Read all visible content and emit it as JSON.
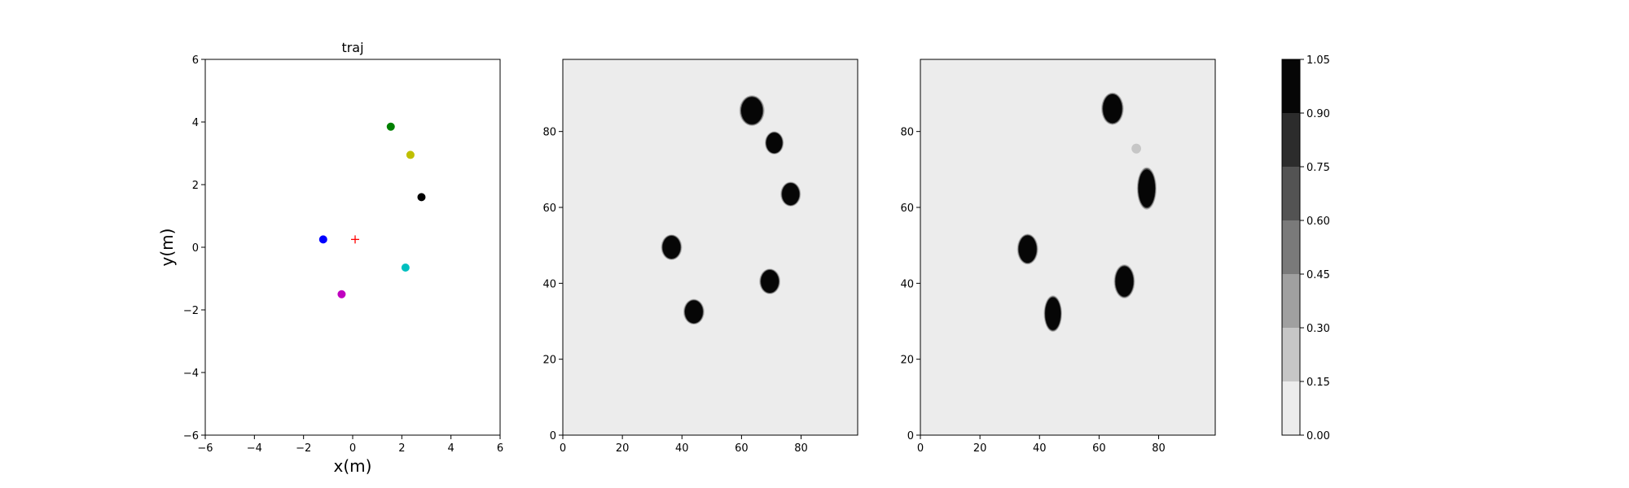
{
  "chart_data": [
    {
      "type": "scatter",
      "title": "traj",
      "xlabel": "x(m)",
      "ylabel": "y(m)",
      "xlim": [
        -6,
        6
      ],
      "ylim": [
        -6,
        6
      ],
      "xticks": [
        "−6",
        "−4",
        "−2",
        "0",
        "2",
        "4",
        "6"
      ],
      "yticks": [
        "−6",
        "−4",
        "−2",
        "0",
        "2",
        "4",
        "6"
      ],
      "grid": false,
      "points": [
        {
          "x": -1.2,
          "y": 0.25,
          "color": "#0000ff",
          "marker": "circle"
        },
        {
          "x": 1.55,
          "y": 3.85,
          "color": "#008000",
          "marker": "circle"
        },
        {
          "x": 2.35,
          "y": 2.95,
          "color": "#bfbf00",
          "marker": "circle"
        },
        {
          "x": 2.8,
          "y": 1.6,
          "color": "#000000",
          "marker": "circle"
        },
        {
          "x": 2.15,
          "y": -0.65,
          "color": "#00bfbf",
          "marker": "circle"
        },
        {
          "x": -0.45,
          "y": -1.5,
          "color": "#bf00bf",
          "marker": "circle"
        },
        {
          "x": 0.1,
          "y": 0.25,
          "color": "#ff0000",
          "marker": "plus"
        }
      ]
    },
    {
      "type": "heatmap",
      "title": "",
      "xlim": [
        0,
        99
      ],
      "ylim": [
        0,
        99
      ],
      "xticks": [
        "0",
        "20",
        "40",
        "60",
        "80"
      ],
      "yticks": [
        "0",
        "20",
        "40",
        "60",
        "80"
      ],
      "background_value": 0.0,
      "blobs": [
        {
          "x": 63.5,
          "y": 85.5,
          "radius": 3.6,
          "value": 1.0
        },
        {
          "x": 71.0,
          "y": 77.0,
          "radius": 2.7,
          "value": 1.0
        },
        {
          "x": 76.5,
          "y": 63.5,
          "radius": 2.9,
          "value": 1.0
        },
        {
          "x": 36.5,
          "y": 49.5,
          "radius": 3.0,
          "value": 1.0
        },
        {
          "x": 69.5,
          "y": 40.5,
          "radius": 3.0,
          "value": 1.0
        },
        {
          "x": 44.0,
          "y": 32.5,
          "radius": 3.0,
          "value": 1.0
        }
      ]
    },
    {
      "type": "heatmap",
      "title": "",
      "xlim": [
        0,
        99
      ],
      "ylim": [
        0,
        99
      ],
      "xticks": [
        "0",
        "20",
        "40",
        "60",
        "80"
      ],
      "yticks": [
        "0",
        "20",
        "40",
        "60",
        "80"
      ],
      "background_value": 0.0,
      "blobs": [
        {
          "x": 64.5,
          "y": 86.0,
          "rx": 3.2,
          "ry": 3.8,
          "value": 1.0
        },
        {
          "x": 72.5,
          "y": 75.5,
          "rx": 1.6,
          "ry": 1.3,
          "value": 0.2
        },
        {
          "x": 76.0,
          "y": 65.0,
          "rx": 2.8,
          "ry": 5.0,
          "value": 1.0
        },
        {
          "x": 36.0,
          "y": 49.0,
          "rx": 3.0,
          "ry": 3.6,
          "value": 1.0
        },
        {
          "x": 68.5,
          "y": 40.5,
          "rx": 3.0,
          "ry": 4.0,
          "value": 1.0
        },
        {
          "x": 44.5,
          "y": 32.0,
          "rx": 2.6,
          "ry": 4.3,
          "value": 1.0
        }
      ]
    }
  ],
  "colorbar": {
    "levels": [
      0.0,
      0.15,
      0.3,
      0.45,
      0.6,
      0.75,
      0.9,
      1.05
    ],
    "labels": [
      "0.00",
      "0.15",
      "0.30",
      "0.45",
      "0.60",
      "0.75",
      "0.90",
      "1.05"
    ],
    "colors": [
      "#ececec",
      "#c6c6c6",
      "#a0a0a0",
      "#7a7a7a",
      "#535353",
      "#2c2c2c",
      "#060606"
    ]
  }
}
